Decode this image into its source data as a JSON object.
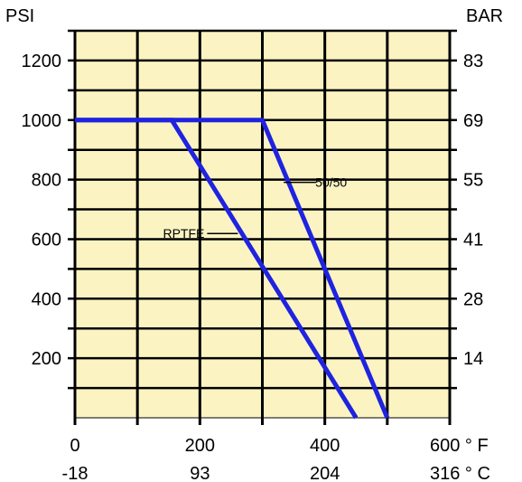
{
  "chart_data": {
    "type": "line",
    "left_axis_unit": "PSI",
    "right_axis_unit": "BAR",
    "ylim": [
      0,
      1300
    ],
    "xlim": [
      0,
      600
    ],
    "y_ticks_psi": [
      {
        "value": 200,
        "label": "200"
      },
      {
        "value": 400,
        "label": "400"
      },
      {
        "value": 600,
        "label": "600"
      },
      {
        "value": 800,
        "label": "800"
      },
      {
        "value": 1000,
        "label": "1000"
      },
      {
        "value": 1200,
        "label": "1200"
      }
    ],
    "y_ticks_bar": [
      {
        "value": 200,
        "label": "14"
      },
      {
        "value": 400,
        "label": "28"
      },
      {
        "value": 600,
        "label": "41"
      },
      {
        "value": 800,
        "label": "55"
      },
      {
        "value": 1000,
        "label": "69"
      },
      {
        "value": 1200,
        "label": "83"
      }
    ],
    "x_ticks_f": [
      {
        "value": 0,
        "label": "0"
      },
      {
        "value": 200,
        "label": "200"
      },
      {
        "value": 400,
        "label": "400"
      },
      {
        "value": 600,
        "label": "600 ° F"
      }
    ],
    "x_ticks_c": [
      {
        "value": 0,
        "label": "-18"
      },
      {
        "value": 200,
        "label": "93"
      },
      {
        "value": 400,
        "label": "204"
      },
      {
        "value": 600,
        "label": "316 ° C"
      }
    ],
    "grid": true,
    "grid_x_step": 100,
    "grid_y_step": 100,
    "colors": {
      "background": "#fbf3c2",
      "grid": "#000000",
      "series": "#1f23e0"
    },
    "series": [
      {
        "name": "50/50",
        "x": [
          0,
          300,
          500
        ],
        "y": [
          1000,
          1000,
          0
        ]
      },
      {
        "name": "RPTFE",
        "x": [
          0,
          155,
          450
        ],
        "y": [
          1000,
          1000,
          0
        ]
      }
    ],
    "annotations": [
      {
        "text": "50/50",
        "x": 340,
        "y": 800,
        "side": "right"
      },
      {
        "text": "RPTFE",
        "x": 255,
        "y": 625,
        "side": "left"
      }
    ]
  }
}
